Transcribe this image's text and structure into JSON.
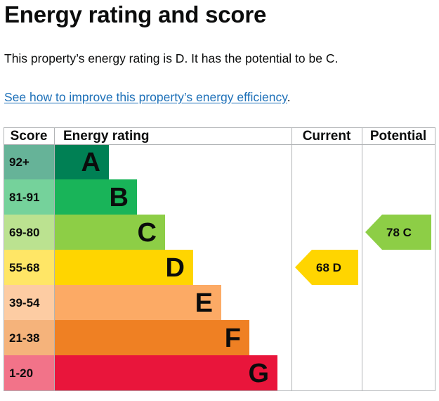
{
  "heading": "Energy rating and score",
  "summary": "This property’s energy rating is D. It has the potential to be C.",
  "improve_link": "See how to improve this property’s energy efficiency",
  "improve_link_suffix": ".",
  "chart_data": {
    "type": "table",
    "columns": [
      "Score",
      "Energy rating",
      "Current",
      "Potential"
    ],
    "bands": [
      {
        "score": "92+",
        "rating": "A",
        "color": "#008054",
        "score_bg": "#66b398"
      },
      {
        "score": "81-91",
        "rating": "B",
        "color": "#19b459",
        "score_bg": "#75d29b"
      },
      {
        "score": "69-80",
        "rating": "C",
        "color": "#8dce46",
        "score_bg": "#bbe290"
      },
      {
        "score": "55-68",
        "rating": "D",
        "color": "#ffd500",
        "score_bg": "#ffe666"
      },
      {
        "score": "39-54",
        "rating": "E",
        "color": "#fcaa65",
        "score_bg": "#fdcca3"
      },
      {
        "score": "21-38",
        "rating": "F",
        "color": "#ef8023",
        "score_bg": "#f5b37b"
      },
      {
        "score": "1-20",
        "rating": "G",
        "color": "#e9153b",
        "score_bg": "#f27389"
      }
    ],
    "current": {
      "score": 68,
      "rating": "D",
      "color": "#ffd500"
    },
    "potential": {
      "score": 78,
      "rating": "C",
      "color": "#8dce46"
    }
  }
}
